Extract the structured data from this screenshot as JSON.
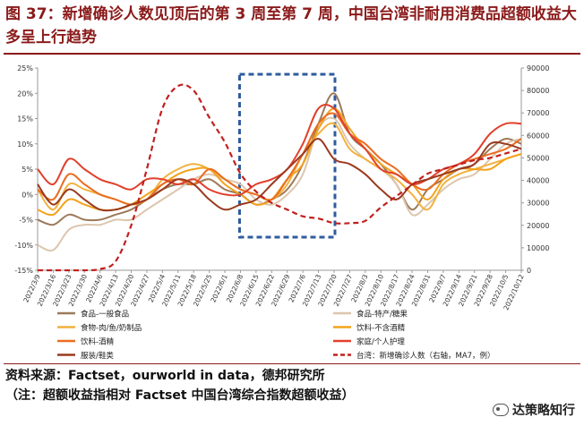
{
  "title": "图 37：新增确诊人数见顶后的第 3 周至第 7 周，中国台湾非耐用消费品超额收益大多呈上行趋势",
  "source": {
    "line1": "资料来源：Factset，ourworld in data，德邦研究所",
    "line2": "（注：超额收益指相对 Factset 中国台湾综合指数超额收益）"
  },
  "watermark": "达策略知行",
  "chart_data": {
    "type": "line",
    "title": "",
    "categories": [
      "2022/3/9",
      "2022/3/16",
      "2022/3/23",
      "2022/3/30",
      "2022/4/6",
      "2022/4/13",
      "2022/4/20",
      "2022/4/27",
      "2022/5/4",
      "2022/5/11",
      "2022/5/18",
      "2022/5/25",
      "2022/6/1",
      "2022/6/8",
      "2022/6/15",
      "2022/6/22",
      "2022/6/29",
      "2022/7/6",
      "2022/7/13",
      "2022/7/20",
      "2022/7/27",
      "2022/8/3",
      "2022/8/10",
      "2022/8/17",
      "2022/8/24",
      "2022/8/31",
      "2022/9/7",
      "2022/9/14",
      "2022/9/21",
      "2022/9/28",
      "2022/10/5",
      "2022/10/12"
    ],
    "left_axis": {
      "ylim": [
        -15,
        25
      ],
      "ticks": [
        "-15%",
        "-10%",
        "-5%",
        "0%",
        "5%",
        "10%",
        "15%",
        "20%",
        "25%"
      ],
      "tick_values": [
        -15,
        -10,
        -5,
        0,
        5,
        10,
        15,
        20,
        25
      ]
    },
    "right_axis": {
      "ylim": [
        0,
        90000
      ],
      "ticks": [
        "0",
        "10000",
        "20000",
        "30000",
        "40000",
        "50000",
        "60000",
        "70000",
        "80000",
        "90000"
      ],
      "tick_values": [
        0,
        10000,
        20000,
        30000,
        40000,
        50000,
        60000,
        70000,
        80000,
        90000
      ]
    },
    "series": [
      {
        "name": "食品-一般食品",
        "color": "#9c7a5a",
        "axis": "left",
        "values": [
          -5,
          -6,
          -4,
          -5,
          -5,
          -4,
          -3,
          -1,
          1,
          2,
          2,
          3,
          1,
          0,
          -2,
          -1,
          1,
          6,
          14,
          20,
          12,
          9,
          6,
          2,
          -3,
          1,
          3,
          5,
          6,
          9,
          11,
          10
        ]
      },
      {
        "name": "食品-特产/糖果",
        "color": "#dcc6ae",
        "axis": "left",
        "values": [
          -10,
          -11,
          -7,
          -6,
          -6,
          -5,
          -5,
          -3,
          -1,
          1,
          3,
          4,
          3,
          2,
          -1,
          -2,
          0,
          4,
          13,
          15,
          10,
          7,
          5,
          2,
          -4,
          -2,
          1,
          3,
          4,
          7,
          10,
          11
        ]
      },
      {
        "name": "食物-肉/鱼/奶制品",
        "color": "#f2b13f",
        "axis": "left",
        "values": [
          1,
          -3,
          2,
          1,
          0,
          -1,
          -2,
          -1,
          3,
          5,
          6,
          5,
          3,
          1,
          0,
          -1,
          2,
          8,
          12,
          14,
          9,
          7,
          5,
          3,
          0,
          -3,
          2,
          4,
          5,
          6,
          7,
          8
        ]
      },
      {
        "name": "饮料-不含酒精",
        "color": "#f3a21c",
        "axis": "left",
        "values": [
          -3,
          -4,
          -1,
          -2,
          -3,
          -3,
          -2,
          0,
          2,
          4,
          5,
          5,
          2,
          0,
          -2,
          -1,
          3,
          6,
          13,
          17,
          13,
          9,
          6,
          4,
          2,
          -1,
          3,
          5,
          5,
          5,
          7,
          8
        ]
      },
      {
        "name": "饮料-酒精",
        "color": "#ea6d21",
        "axis": "left",
        "values": [
          1,
          -1,
          4,
          2,
          0,
          -1,
          -2,
          -1,
          2,
          3,
          2,
          5,
          3,
          1,
          0,
          -1,
          3,
          8,
          14,
          16,
          12,
          10,
          7,
          5,
          2,
          1,
          4,
          6,
          7,
          8,
          9,
          11
        ]
      },
      {
        "name": "家庭/个人护理",
        "color": "#e1402c",
        "axis": "left",
        "values": [
          5,
          2,
          7,
          5,
          3,
          2,
          1,
          3,
          3,
          2,
          3,
          1,
          0,
          0,
          2,
          3,
          5,
          10,
          17,
          17,
          12,
          9,
          5,
          4,
          2,
          3,
          5,
          6,
          8,
          12,
          14,
          14
        ]
      },
      {
        "name": "服装/鞋类",
        "color": "#9a3a1e",
        "axis": "left",
        "values": [
          2,
          -2,
          1,
          -1,
          -3,
          -3,
          -2,
          -1,
          1,
          3,
          2,
          -1,
          -3,
          -2,
          -1,
          2,
          5,
          8,
          11,
          7,
          6,
          4,
          1,
          -1,
          2,
          3,
          4,
          5,
          6,
          10,
          10,
          9
        ]
      },
      {
        "name": "台湾：新增确诊人数（右轴，MA7，例）",
        "color": "#c1201e",
        "axis": "right",
        "dashed": true,
        "values": [
          0,
          0,
          0,
          0,
          500,
          4000,
          20000,
          45000,
          72000,
          82000,
          80000,
          68000,
          57000,
          43000,
          35000,
          30000,
          27000,
          24000,
          23000,
          21000,
          21000,
          22000,
          28000,
          33000,
          38000,
          43000,
          45000,
          47000,
          49000,
          50000,
          52000,
          54000
        ]
      }
    ],
    "legend_position": "bottom",
    "annotation": "dashed blue rectangle highlighting 2022/6/8 to 2022/7/20"
  }
}
